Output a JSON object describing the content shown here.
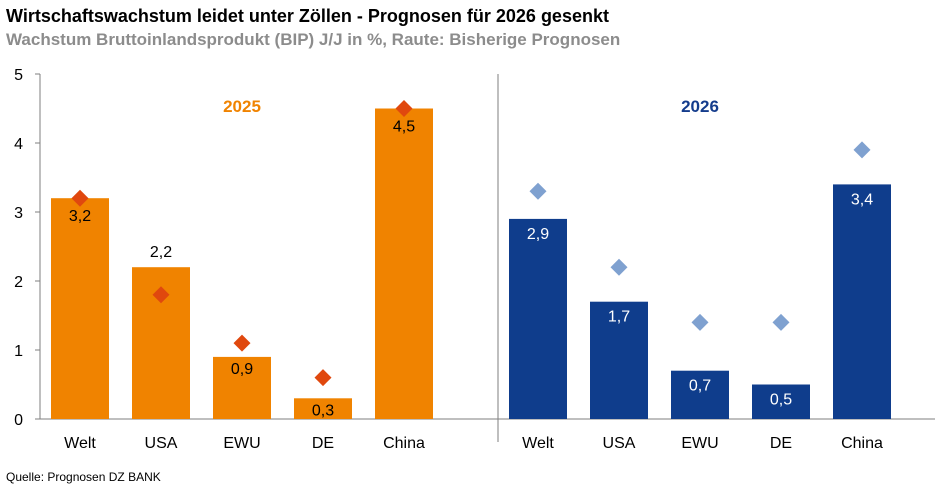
{
  "header": {
    "title": "Wirtschaftswachstum leidet unter Zöllen - Prognosen für 2026 gesenkt",
    "subtitle": "Wachstum Bruttoinlandsprodukt (BIP) J/J in %, Raute: Bisherige Prognosen"
  },
  "footer": {
    "source": "Quelle: Prognosen DZ BANK"
  },
  "chart_data": {
    "type": "bar",
    "title": "Wirtschaftswachstum leidet unter Zöllen - Prognosen für 2026 gesenkt",
    "subtitle": "Wachstum Bruttoinlandsprodukt (BIP) J/J in %, Raute: Bisherige Prognosen",
    "ylim": [
      0,
      5
    ],
    "yticks": [
      0,
      1,
      2,
      3,
      4,
      5
    ],
    "grid": false,
    "groups": [
      {
        "name": "2025",
        "color": "#f08300",
        "label_color": "#f08300",
        "diamond_color": "#e0480e",
        "categories": [
          "Welt",
          "USA",
          "EWU",
          "DE",
          "China"
        ],
        "values": [
          3.2,
          2.2,
          0.9,
          0.3,
          4.5
        ],
        "value_labels": [
          "3,2",
          "2,2",
          "0,9",
          "0,3",
          "4,5"
        ],
        "previous_forecast": [
          3.2,
          1.8,
          1.1,
          0.6,
          4.5
        ]
      },
      {
        "name": "2026",
        "color": "#0f3d8c",
        "label_color": "#143c8c",
        "diamond_color": "#7fa1d0",
        "categories": [
          "Welt",
          "USA",
          "EWU",
          "DE",
          "China"
        ],
        "values": [
          2.9,
          1.7,
          0.7,
          0.5,
          3.4
        ],
        "value_labels": [
          "2,9",
          "1,7",
          "0,7",
          "0,5",
          "3,4"
        ],
        "previous_forecast": [
          3.3,
          2.2,
          1.4,
          1.4,
          3.9
        ]
      }
    ],
    "source": "Quelle: Prognosen DZ BANK"
  }
}
